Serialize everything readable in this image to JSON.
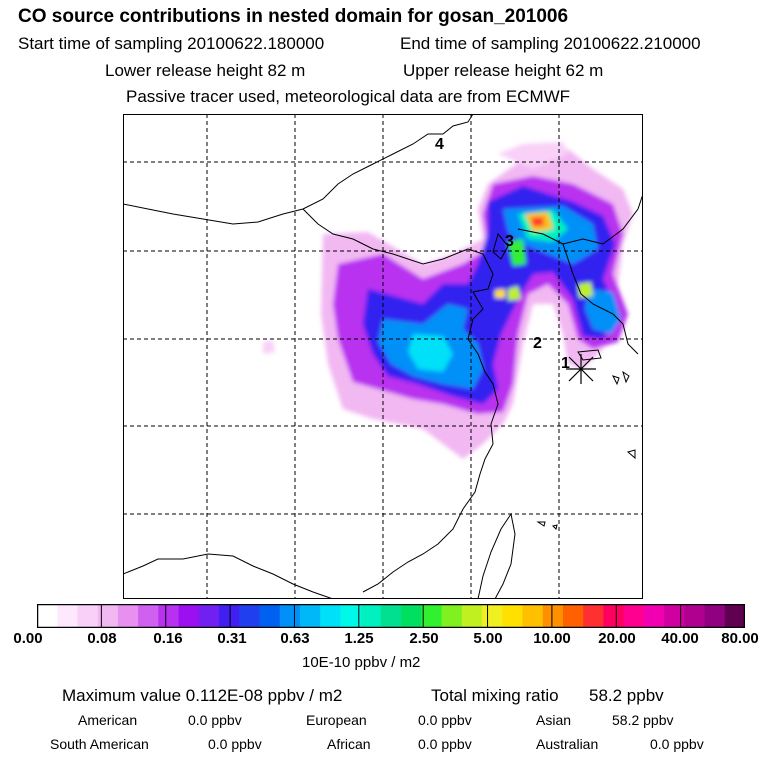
{
  "header": {
    "title": "CO  source contributions in nested domain for gosan_201006",
    "start_time": "Start time of sampling 20100622.180000",
    "end_time": "End time of sampling 20100622.210000",
    "lower_release": "Lower release height   82 m",
    "upper_release": "Upper release height   62 m",
    "tracer_note": "Passive tracer used, meteorological data are from ECMWF"
  },
  "map": {
    "labels": [
      "1",
      "2",
      "3",
      "4"
    ]
  },
  "colorbar": {
    "colors": [
      "#ffffff",
      "#fde8fd",
      "#f8d0f8",
      "#f2b8f2",
      "#e890f0",
      "#d060f0",
      "#b830f0",
      "#9a10f0",
      "#7020f0",
      "#4020f0",
      "#2040f0",
      "#0060f0",
      "#0090f8",
      "#00b8f8",
      "#00e0f8",
      "#00f8e8",
      "#00f0c0",
      "#00e090",
      "#00e060",
      "#30f030",
      "#80f020",
      "#c0f020",
      "#f0f020",
      "#ffe000",
      "#ffc000",
      "#ff9000",
      "#ff6000",
      "#ff3030",
      "#ff0060",
      "#ff0090",
      "#f000b0",
      "#d000a0",
      "#b00090",
      "#900080",
      "#600050"
    ],
    "ticks": [
      "0.00",
      "0.08",
      "0.16",
      "0.31",
      "0.63",
      "1.25",
      "2.50",
      "5.00",
      "10.00",
      "20.00",
      "40.00",
      "80.00"
    ],
    "units": "10E-10 ppbv / m2"
  },
  "summary": {
    "max_value": "Maximum value  0.112E-08 ppbv / m2",
    "total_label": "Total mixing ratio",
    "total_value": "58.2 ppbv",
    "regions": [
      {
        "name": "American",
        "value": "0.0 ppbv"
      },
      {
        "name": "European",
        "value": "0.0 ppbv"
      },
      {
        "name": "Asian",
        "value": "58.2 ppbv"
      },
      {
        "name": "South American",
        "value": "0.0 ppbv"
      },
      {
        "name": "African",
        "value": "0.0 ppbv"
      },
      {
        "name": "Australian",
        "value": "0.0 ppbv"
      }
    ]
  }
}
